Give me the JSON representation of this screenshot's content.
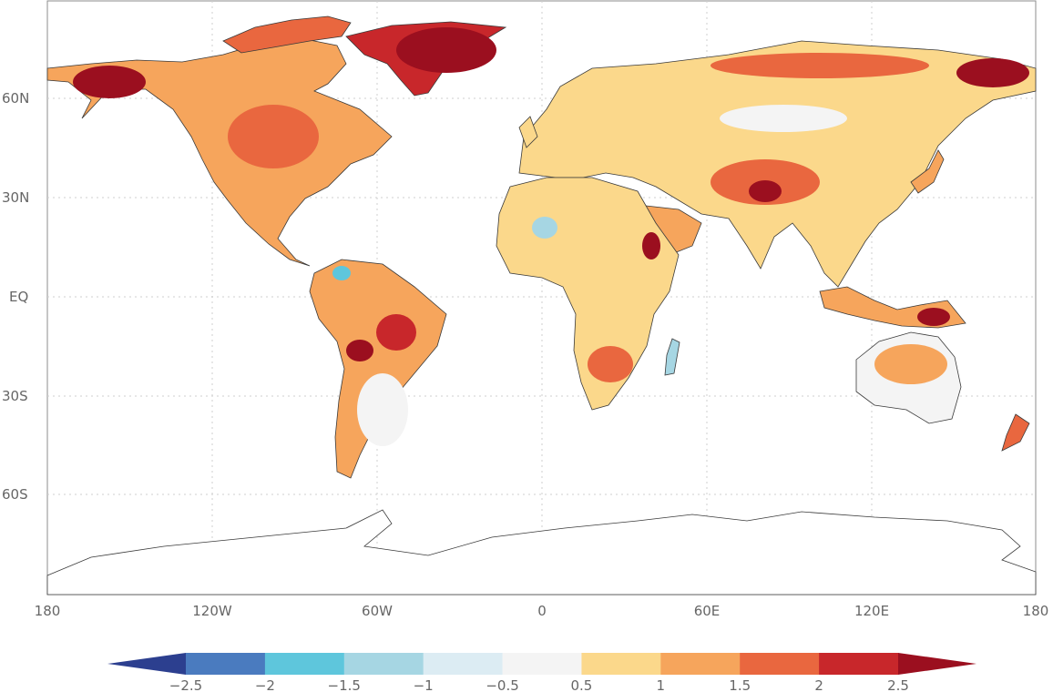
{
  "map": {
    "y_ticks": [
      "60N",
      "30N",
      "EQ",
      "30S",
      "60S"
    ],
    "x_ticks": [
      "180",
      "120W",
      "60W",
      "0",
      "60E",
      "120E",
      "180"
    ]
  },
  "colorbar": {
    "labels": [
      "−2.5",
      "−2",
      "−1.5",
      "−1",
      "−0.5",
      "0.5",
      "1",
      "1.5",
      "2",
      "2.5"
    ],
    "colors": [
      "#2c3f8f",
      "#4a7bbf",
      "#5ec6dc",
      "#a6d6e3",
      "#dcecf3",
      "#f4f4f4",
      "#fbd88b",
      "#f6a55c",
      "#e9673f",
      "#c8272b",
      "#9b0f1f"
    ]
  }
}
